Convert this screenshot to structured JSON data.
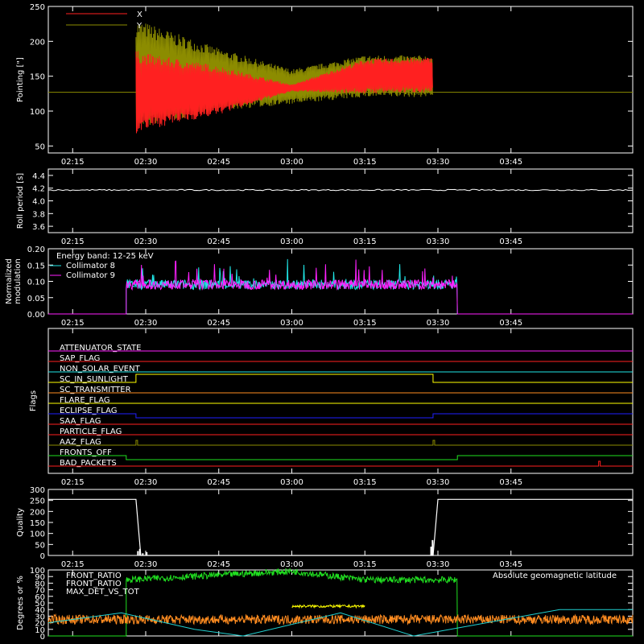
{
  "colors": {
    "background": "#000000",
    "axis": "#ffffff",
    "x_series": "#ff2020",
    "y_series": "#8c8c00",
    "collimator8": "#20e6e6",
    "collimator9": "#ff20ff",
    "front_ratio_hi": "#ffff00",
    "front_ratio_lo": "#20e020",
    "max_det": "#ff8c20",
    "geomag": "#20d0d0"
  },
  "time_axis": {
    "range_minutes": [
      -20,
      100
    ],
    "tick_minutes": [
      -15,
      0,
      15,
      30,
      45,
      60,
      75
    ],
    "tick_labels": [
      "02:15",
      "02:30",
      "02:45",
      "03:00",
      "03:15",
      "03:30",
      "03:45"
    ]
  },
  "chart_data": [
    {
      "id": "pointing",
      "type": "line",
      "ylabel": "Pointing [\"]",
      "ylim": [
        40,
        250
      ],
      "yticks": [
        50,
        100,
        150,
        200,
        250
      ],
      "legend": [
        "X",
        "Y"
      ],
      "legend_position": "top-left",
      "series": [
        {
          "name": "X",
          "color": "#ff2020",
          "x": [
            -2,
            0,
            15,
            30,
            45,
            59
          ],
          "center": [
            127,
            128,
            130,
            133,
            150,
            152
          ],
          "amplitude": [
            60,
            55,
            35,
            5,
            25,
            25
          ]
        },
        {
          "name": "Y",
          "color": "#8c8c00",
          "x": [
            -2,
            0,
            15,
            30,
            45,
            59
          ],
          "center": [
            150,
            152,
            145,
            135,
            150,
            150
          ],
          "amplitude": [
            80,
            75,
            45,
            25,
            30,
            30
          ]
        }
      ],
      "baseline": 127
    },
    {
      "id": "roll",
      "type": "line",
      "ylabel": "Roll period [s]",
      "ylim": [
        3.5,
        4.5
      ],
      "yticks": [
        3.6,
        3.8,
        4.0,
        4.2,
        4.4
      ],
      "series": [
        {
          "name": "",
          "color": "#ffffff",
          "value": 4.17
        }
      ]
    },
    {
      "id": "modulation",
      "type": "line",
      "ylabel": "Normalized modulation",
      "ylim": [
        0,
        0.2
      ],
      "yticks": [
        0.0,
        0.05,
        0.1,
        0.15,
        0.2
      ],
      "annotation": "Energy band: 12-25 keV",
      "legend": [
        "Collimator 8",
        "Collimator 9"
      ],
      "legend_position": "top-left",
      "active_x": [
        -4,
        64
      ],
      "series": [
        {
          "name": "Collimator 8",
          "color": "#20e6e6",
          "mean": 0.09
        },
        {
          "name": "Collimator 9",
          "color": "#ff20ff",
          "mean": 0.09
        }
      ]
    },
    {
      "id": "flags",
      "type": "line",
      "ylabel": "Flags",
      "flags": [
        {
          "label": "ATTENUATOR_STATE",
          "color": "#ff20ff",
          "steps": []
        },
        {
          "label": "SAP_FLAG",
          "color": "#ff2020",
          "steps": []
        },
        {
          "label": "NON_SOLAR_EVENT",
          "color": "#20e6e6",
          "steps": []
        },
        {
          "label": "SC_IN_SUNLIGHT",
          "color": "#ffff00",
          "steps": [
            [
              -2,
              1
            ],
            [
              59,
              0
            ]
          ]
        },
        {
          "label": "SC_TRANSMITTER",
          "color": "#ff8c20",
          "steps": []
        },
        {
          "label": "FLARE_FLAG",
          "color": "#ffff00",
          "steps": []
        },
        {
          "label": "ECLIPSE_FLAG",
          "color": "#2020ff",
          "steps": [
            [
              -2,
              -1
            ],
            [
              59,
              0
            ]
          ]
        },
        {
          "label": "SAA_FLAG",
          "color": "#ff2020",
          "steps": []
        },
        {
          "label": "PARTICLE_FLAG",
          "color": "#ff2020",
          "steps": []
        },
        {
          "label": "AAZ_FLAG",
          "color": "#8c8c00",
          "pulses": [
            -2,
            59
          ]
        },
        {
          "label": "FRONTS_OFF",
          "color": "#20e020",
          "steps": [
            [
              -4,
              -1
            ],
            [
              64,
              0
            ]
          ]
        },
        {
          "label": "BAD_PACKETS",
          "color": "#ff2020",
          "pulses": [
            93
          ]
        }
      ]
    },
    {
      "id": "quality",
      "type": "line",
      "ylabel": "Quality",
      "ylim": [
        0,
        300
      ],
      "yticks": [
        0,
        50,
        100,
        150,
        200,
        250,
        300
      ],
      "series": [
        {
          "name": "",
          "color": "#ffffff",
          "x": [
            -20,
            -2,
            -1,
            59,
            60,
            100
          ],
          "y": [
            255,
            255,
            0,
            0,
            255,
            255
          ]
        }
      ]
    },
    {
      "id": "ratios",
      "type": "line",
      "ylabel": "Degrees or %",
      "ylim": [
        0,
        100
      ],
      "yticks": [
        0,
        10,
        20,
        30,
        40,
        50,
        60,
        70,
        80,
        90,
        100
      ],
      "legend": [
        "FRONT_RATIO",
        "FRONT_RATIO",
        "MAX_DET_VS_TOT",
        "Absolute geomagnetic latitude"
      ],
      "series": [
        {
          "name": "FRONT_RATIO",
          "color": "#ffff00",
          "x": [
            30,
            45
          ],
          "y": [
            45,
            45
          ]
        },
        {
          "name": "FRONT_RATIO",
          "color": "#20e020",
          "x": [
            -4,
            30,
            45,
            64
          ],
          "y": [
            85,
            98,
            85,
            85
          ]
        },
        {
          "name": "MAX_DET_VS_TOT",
          "color": "#ff8c20",
          "mean": 25
        },
        {
          "name": "Absolute geomagnetic latitude",
          "color": "#20d0d0",
          "x": [
            -20,
            -5,
            10,
            20,
            40,
            55,
            70,
            85,
            100
          ],
          "y": [
            20,
            35,
            10,
            0,
            35,
            0,
            20,
            40,
            40
          ]
        }
      ]
    }
  ]
}
